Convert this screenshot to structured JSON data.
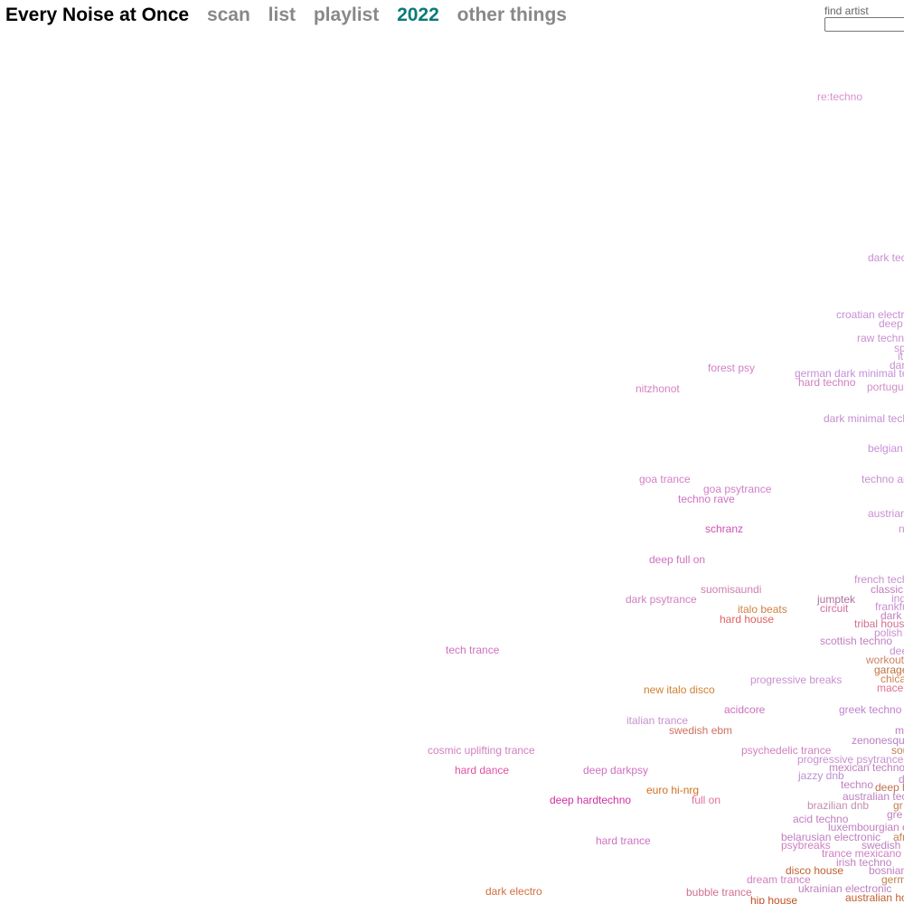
{
  "header": {
    "title": "Every Noise at Once",
    "nav": [
      "scan",
      "list",
      "playlist",
      "2022",
      "other things"
    ]
  },
  "search": {
    "label": "find artist"
  },
  "genres": [
    "re:techno",
    "dark tec",
    "croatian electro",
    "deep",
    "raw techno",
    "sp",
    "it",
    "dar",
    "forest psy",
    "german dark minimal tec",
    "hard techno",
    "portugue",
    "nitzhonot",
    "dark minimal tech",
    "belgian t",
    "goa trance",
    "techno ar",
    "goa psytrance",
    "techno rave",
    "austrian",
    "n",
    "schranz",
    "deep full on",
    "french tech",
    "suomisaundi",
    "classic",
    "ind",
    "dark psytrance",
    "jumptek",
    "frankfu",
    "circuit",
    "italo beats",
    "dark",
    "hard house",
    "tribal house",
    "polish",
    "scottish techno",
    "tech trance",
    "dee",
    "workout",
    "garage",
    "chica",
    "progressive breaks",
    "maced",
    "new italo disco",
    "acidcore",
    "greek techno",
    "italian trance",
    "m",
    "swedish ebm",
    "zenonesque",
    "cosmic uplifting trance",
    "psychedelic trance",
    "sou",
    "progressive psytrance",
    "mexican techno",
    "hard dance",
    "deep darkpsy",
    "jazzy dnb",
    "d",
    "techno",
    "deep h",
    "euro hi-nrg",
    "australian tech",
    "deep hardtechno",
    "full on",
    "brazilian dnb",
    "gr",
    "gre",
    "acid techno",
    "luxembourgian el",
    "belarusian electronic",
    "afr",
    "hard trance",
    "psybreaks",
    "swedish t",
    "trance mexicano",
    "irish techno",
    "disco house",
    "bosnian",
    "dream trance",
    "germ",
    "ukrainian electronic",
    "dark electro",
    "bubble trance",
    "australian ho",
    "hip house"
  ]
}
